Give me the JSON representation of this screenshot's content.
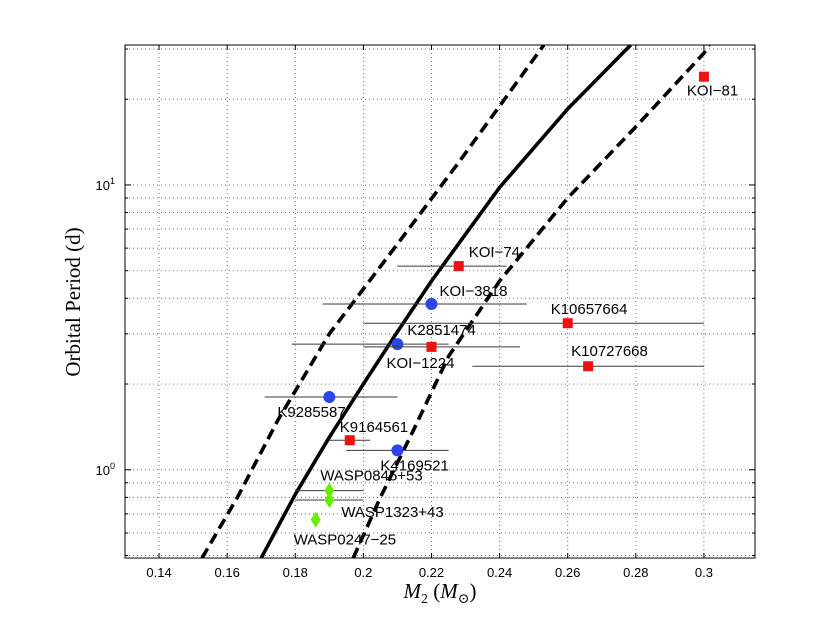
{
  "chart_data": {
    "type": "scatter",
    "xlabel": "M2 (M⊙)",
    "xlabel_parts": {
      "symbol": "M",
      "sub": "2",
      "unit_open": " (",
      "unit_symbol": "M",
      "unit_sub": "⊙",
      "unit_close": ")"
    },
    "ylabel": "Orbital Period (d)",
    "xlim": [
      0.13,
      0.315
    ],
    "ylim": [
      0.49,
      31
    ],
    "yscale": "log",
    "grid": true,
    "x_ticks": [
      0.14,
      0.16,
      0.18,
      0.2,
      0.22,
      0.24,
      0.26,
      0.28,
      0.3
    ],
    "x_tick_labels": [
      "0.14",
      "0.16",
      "0.18",
      "0.2",
      "0.22",
      "0.24",
      "0.26",
      "0.28",
      "0.3"
    ],
    "y_ticks_labeled": [
      {
        "value": 1,
        "base": "10",
        "exp": "0"
      },
      {
        "value": 10,
        "base": "10",
        "exp": "1"
      }
    ],
    "curves": [
      {
        "name": "relation-upper-dashed",
        "style": "dashed",
        "points": [
          [
            0.1526,
            0.49
          ],
          [
            0.163,
            0.8
          ],
          [
            0.175,
            1.5
          ],
          [
            0.19,
            3.0
          ],
          [
            0.21,
            6.2
          ],
          [
            0.228,
            12
          ],
          [
            0.253,
            31
          ]
        ]
      },
      {
        "name": "relation-central-solid",
        "style": "solid",
        "points": [
          [
            0.17,
            0.49
          ],
          [
            0.18,
            0.82
          ],
          [
            0.19,
            1.3
          ],
          [
            0.2,
            2.0
          ],
          [
            0.21,
            3.05
          ],
          [
            0.22,
            4.6
          ],
          [
            0.24,
            9.8
          ],
          [
            0.26,
            18.5
          ],
          [
            0.2785,
            31
          ]
        ]
      },
      {
        "name": "relation-lower-dashed",
        "style": "dashed",
        "points": [
          [
            0.197,
            0.49
          ],
          [
            0.205,
            0.8
          ],
          [
            0.215,
            1.4
          ],
          [
            0.225,
            2.5
          ],
          [
            0.24,
            4.6
          ],
          [
            0.26,
            9.0
          ],
          [
            0.28,
            16
          ],
          [
            0.3,
            29
          ],
          [
            0.3015,
            31
          ]
        ]
      }
    ],
    "points": [
      {
        "label": "KOI−81",
        "x": 0.3,
        "y": 24.0,
        "marker": "square",
        "color": "#ee1111",
        "xerr": [
          0.3,
          0.3
        ],
        "label_pos": "below-left"
      },
      {
        "label": "KOI−74",
        "x": 0.228,
        "y": 5.19,
        "marker": "square",
        "color": "#ee1111",
        "xerr": [
          0.21,
          0.242
        ],
        "label_pos": "above-right"
      },
      {
        "label": "KOI−3818",
        "x": 0.22,
        "y": 3.82,
        "marker": "circle",
        "color": "#2a45ee",
        "xerr": [
          0.188,
          0.248
        ],
        "label_pos": "above-right"
      },
      {
        "label": "K10657664",
        "x": 0.26,
        "y": 3.27,
        "marker": "square",
        "color": "#ee1111",
        "xerr": [
          0.2,
          0.3
        ],
        "label_pos": "above-left"
      },
      {
        "label": "K2851474",
        "x": 0.21,
        "y": 2.76,
        "marker": "circle",
        "color": "#2a45ee",
        "xerr": [
          0.179,
          0.225
        ],
        "label_pos": "above-right"
      },
      {
        "label": "KOI−1224",
        "x": 0.22,
        "y": 2.7,
        "marker": "square",
        "color": "#ee1111",
        "xerr": [
          0.2,
          0.246
        ],
        "label_pos": "below-left"
      },
      {
        "label": "K10727668",
        "x": 0.266,
        "y": 2.31,
        "marker": "square",
        "color": "#ee1111",
        "xerr": [
          0.232,
          0.3
        ],
        "label_pos": "above-left"
      },
      {
        "label": "K9285587",
        "x": 0.19,
        "y": 1.8,
        "marker": "circle",
        "color": "#2a45ee",
        "xerr": [
          0.171,
          0.21
        ],
        "label_pos": "below-left"
      },
      {
        "label": "K9164561",
        "x": 0.196,
        "y": 1.27,
        "marker": "square",
        "color": "#ee1111",
        "xerr": [
          0.19,
          0.202
        ],
        "label_pos": "above-left"
      },
      {
        "label": "K4169521",
        "x": 0.21,
        "y": 1.17,
        "marker": "circle",
        "color": "#2a45ee",
        "xerr": [
          0.195,
          0.225
        ],
        "label_pos": "below-left"
      },
      {
        "label": "WASP0845+53",
        "x": 0.19,
        "y": 0.845,
        "marker": "diamond",
        "color": "#66ee00",
        "xerr": [
          0.18,
          0.2
        ],
        "label_pos": "above-left"
      },
      {
        "label": "WASP1323+43",
        "x": 0.19,
        "y": 0.783,
        "marker": "diamond",
        "color": "#66ee00",
        "xerr": [
          0.18,
          0.2
        ],
        "label_pos": "below-right"
      },
      {
        "label": "WASP0247−25",
        "x": 0.186,
        "y": 0.668,
        "marker": "diamond",
        "color": "#66ee00",
        "xerr": [
          0.186,
          0.186
        ],
        "label_pos": "below-left"
      }
    ]
  }
}
